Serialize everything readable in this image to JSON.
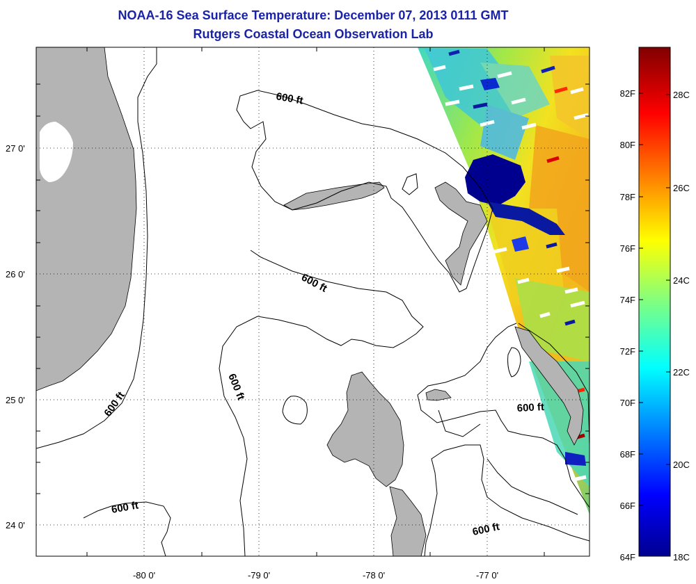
{
  "title": "NOAA-16 Sea Surface Temperature:  December 07, 2013 0111 GMT",
  "subtitle": "Rutgers Coastal Ocean Observation Lab",
  "map": {
    "lat_labels": [
      "27 0'",
      "26 0'",
      "25 0'",
      "24 0'"
    ],
    "lon_labels": [
      "-80 0'",
      "-79 0'",
      "-78 0'",
      "-77 0'"
    ],
    "contour_label": "600 ft",
    "contour_label_count": 6,
    "land_color": "#b4b4b4",
    "grid": "dotted",
    "lat_values": [
      27,
      26,
      25,
      24
    ],
    "lon_values": [
      -80,
      -79,
      -78,
      -77
    ]
  },
  "colorbar": {
    "fahrenheit_labels": [
      "82F",
      "80F",
      "78F",
      "76F",
      "74F",
      "72F",
      "70F",
      "68F",
      "66F",
      "64F"
    ],
    "celsius_labels": [
      "28C",
      "26C",
      "24C",
      "22C",
      "20C",
      "18C"
    ],
    "range_c": [
      18,
      29.3
    ],
    "colormap": "jet"
  }
}
